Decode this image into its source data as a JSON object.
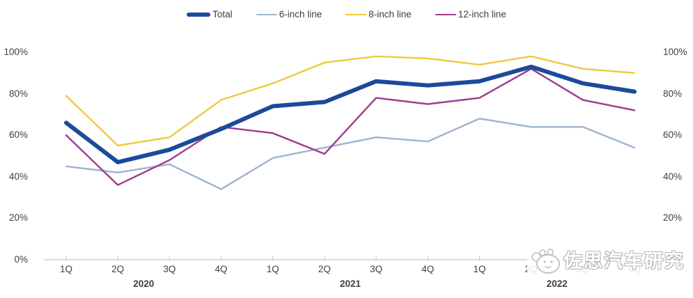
{
  "chart_data": {
    "type": "line",
    "title": "",
    "x_labels": [
      "1Q",
      "2Q",
      "3Q",
      "4Q",
      "1Q",
      "2Q",
      "3Q",
      "4Q",
      "1Q",
      "2Q",
      "3Q",
      "4Q"
    ],
    "year_groups": [
      {
        "label": "2020",
        "start": 0,
        "end": 3
      },
      {
        "label": "2021",
        "start": 4,
        "end": 7
      },
      {
        "label": "2022",
        "start": 8,
        "end": 11
      }
    ],
    "y_ticks": [
      "0%",
      "20%",
      "40%",
      "60%",
      "80%",
      "100%"
    ],
    "ylim": [
      0,
      100
    ],
    "grid": false,
    "legend_position": "top",
    "y_axis_sides": [
      "left",
      "right"
    ],
    "series": [
      {
        "name": "Total",
        "color": "#1B4A9B",
        "width": 6,
        "values": [
          66,
          47,
          53,
          63,
          74,
          76,
          86,
          84,
          86,
          93,
          85,
          81
        ]
      },
      {
        "name": "6-inch line",
        "color": "#9FB3CD",
        "width": 2.4,
        "values": [
          45,
          42,
          46,
          34,
          49,
          54,
          59,
          57,
          68,
          64,
          64,
          54
        ]
      },
      {
        "name": "8-inch line",
        "color": "#EFC93C",
        "width": 2.4,
        "values": [
          79,
          55,
          59,
          77,
          85,
          95,
          98,
          97,
          94,
          98,
          92,
          90
        ]
      },
      {
        "name": "12-inch line",
        "color": "#9E3A8C",
        "width": 2.4,
        "values": [
          60,
          36,
          48,
          64,
          61,
          51,
          78,
          75,
          78,
          92,
          77,
          72
        ]
      }
    ]
  },
  "watermark": {
    "text": "佐思汽车研究"
  },
  "colors": {
    "axis": "#c2c2c2",
    "label": "#3f3f3f",
    "background": "#ffffff"
  }
}
